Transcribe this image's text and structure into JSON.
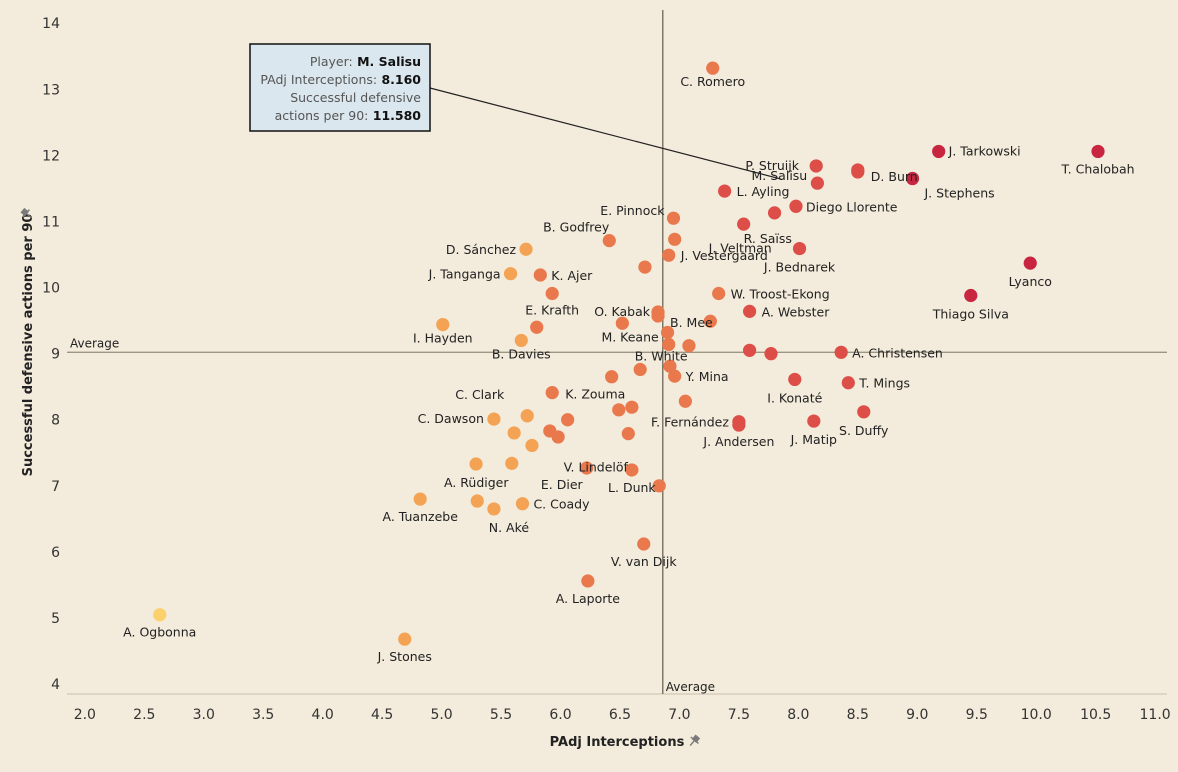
{
  "chart_data": {
    "type": "scatter",
    "xlabel": "PAdj Interceptions",
    "ylabel": "Successful defensive actions per 90",
    "xlim": [
      1.85,
      11.1
    ],
    "ylim": [
      3.85,
      14.2
    ],
    "x_ticks": [
      "2.0",
      "2.5",
      "3.0",
      "3.5",
      "4.0",
      "4.5",
      "5.0",
      "5.5",
      "6.0",
      "6.5",
      "7.0",
      "7.5",
      "8.0",
      "8.5",
      "9.0",
      "9.5",
      "10.0",
      "10.5",
      "11.0"
    ],
    "y_ticks": [
      "4",
      "5",
      "6",
      "7",
      "8",
      "9",
      "10",
      "11",
      "12",
      "13",
      "14"
    ],
    "grid": false,
    "reference_lines": {
      "x_average": 6.86,
      "y_average": 9.02,
      "x_label": "Average",
      "y_label": "Average"
    },
    "color_encoding": "color intensity increases with combined metrics (yellow → orange → red → crimson)",
    "tooltip": {
      "player_label": "Player:",
      "player": "M. Salisu",
      "x_label": "PAdj Interceptions:",
      "x_value": "8.160",
      "y_label_line1": "Successful defensive",
      "y_label_line2": "actions per 90:",
      "y_value": "11.580"
    },
    "points": [
      {
        "name": "C. Romero",
        "x": 7.28,
        "y": 13.32,
        "color": "#e9784c"
      },
      {
        "name": "J. Tarkowski",
        "x": 9.18,
        "y": 12.06,
        "color": "#c72540"
      },
      {
        "name": "T. Chalobah",
        "x": 10.52,
        "y": 12.06,
        "color": "#c72540"
      },
      {
        "name": "P. Struijk",
        "x": 8.15,
        "y": 11.84,
        "color": "#dc4e47"
      },
      {
        "name": "",
        "x": 8.5,
        "y": 11.78,
        "color": "#dc4e47"
      },
      {
        "name": "M. Salisu",
        "x": 8.16,
        "y": 11.58,
        "color": "#dc4e47"
      },
      {
        "name": "D. Burn",
        "x": 8.5,
        "y": 11.75,
        "color": "#dc4e47"
      },
      {
        "name": "J. Stephens",
        "x": 8.96,
        "y": 11.65,
        "color": "#c72540"
      },
      {
        "name": "L. Ayling",
        "x": 7.38,
        "y": 11.46,
        "color": "#dc4e47"
      },
      {
        "name": "Diego Llorente",
        "x": 7.98,
        "y": 11.23,
        "color": "#dc4e47"
      },
      {
        "name": "",
        "x": 7.8,
        "y": 11.13,
        "color": "#dc4e47"
      },
      {
        "name": "E. Pinnock",
        "x": 6.95,
        "y": 11.05,
        "color": "#e9784c"
      },
      {
        "name": "R. Saïss",
        "x": 7.54,
        "y": 10.96,
        "color": "#dc4e47"
      },
      {
        "name": "B. Godfrey",
        "x": 6.41,
        "y": 10.71,
        "color": "#e9784c"
      },
      {
        "name": "J. Veltman",
        "x": 6.96,
        "y": 10.73,
        "color": "#e9784c"
      },
      {
        "name": "J. Bednarek",
        "x": 8.01,
        "y": 10.59,
        "color": "#dc4e47"
      },
      {
        "name": "D. Sánchez",
        "x": 5.71,
        "y": 10.58,
        "color": "#f4a354"
      },
      {
        "name": "J. Vestergaard",
        "x": 6.91,
        "y": 10.49,
        "color": "#e9784c"
      },
      {
        "name": "Lyanco",
        "x": 9.95,
        "y": 10.37,
        "color": "#c72540"
      },
      {
        "name": "",
        "x": 6.71,
        "y": 10.31,
        "color": "#e9784c"
      },
      {
        "name": "J. Tanganga",
        "x": 5.58,
        "y": 10.21,
        "color": "#f4a354"
      },
      {
        "name": "K. Ajer",
        "x": 5.83,
        "y": 10.19,
        "color": "#e9784c"
      },
      {
        "name": "E. Krafth",
        "x": 5.93,
        "y": 9.91,
        "color": "#e9784c"
      },
      {
        "name": "W. Troost-Ekong",
        "x": 7.33,
        "y": 9.91,
        "color": "#e9784c"
      },
      {
        "name": "Thiago Silva",
        "x": 9.45,
        "y": 9.88,
        "color": "#c72540"
      },
      {
        "name": "O. Kabak",
        "x": 6.82,
        "y": 9.63,
        "color": "#e9784c"
      },
      {
        "name": "B. Mee",
        "x": 6.82,
        "y": 9.57,
        "color": "#e9784c"
      },
      {
        "name": "A. Webster",
        "x": 7.59,
        "y": 9.64,
        "color": "#dc4e47"
      },
      {
        "name": "",
        "x": 7.26,
        "y": 9.49,
        "color": "#e9784c"
      },
      {
        "name": "I. Hayden",
        "x": 5.01,
        "y": 9.44,
        "color": "#f4a354"
      },
      {
        "name": "",
        "x": 6.52,
        "y": 9.46,
        "color": "#e9784c"
      },
      {
        "name": "",
        "x": 5.8,
        "y": 9.4,
        "color": "#e9784c"
      },
      {
        "name": "",
        "x": 6.9,
        "y": 9.32,
        "color": "#e9784c"
      },
      {
        "name": "M. Keane",
        "x": 6.91,
        "y": 9.14,
        "color": "#e9784c"
      },
      {
        "name": "B. Davies",
        "x": 5.67,
        "y": 9.2,
        "color": "#f4a354"
      },
      {
        "name": "",
        "x": 7.08,
        "y": 9.12,
        "color": "#e9784c"
      },
      {
        "name": "B. White",
        "x": 7.59,
        "y": 9.05,
        "color": "#dc4e47"
      },
      {
        "name": "",
        "x": 7.77,
        "y": 9.0,
        "color": "#dc4e47"
      },
      {
        "name": "A. Christensen",
        "x": 8.36,
        "y": 9.02,
        "color": "#dc4e47"
      },
      {
        "name": "",
        "x": 6.92,
        "y": 8.81,
        "color": "#e9784c"
      },
      {
        "name": "",
        "x": 6.67,
        "y": 8.76,
        "color": "#e9784c"
      },
      {
        "name": "Y. Mina",
        "x": 6.96,
        "y": 8.66,
        "color": "#e9784c"
      },
      {
        "name": "",
        "x": 6.43,
        "y": 8.65,
        "color": "#e9784c"
      },
      {
        "name": "I. Konaté",
        "x": 7.97,
        "y": 8.61,
        "color": "#dc4e47"
      },
      {
        "name": "T. Mings",
        "x": 8.42,
        "y": 8.56,
        "color": "#dc4e47"
      },
      {
        "name": "K. Zouma",
        "x": 5.93,
        "y": 8.41,
        "color": "#e9784c"
      },
      {
        "name": "",
        "x": 7.05,
        "y": 8.28,
        "color": "#e9784c"
      },
      {
        "name": "C. Clark",
        "x": 5.72,
        "y": 8.06,
        "color": "#f4a354"
      },
      {
        "name": "",
        "x": 6.49,
        "y": 8.15,
        "color": "#e9784c"
      },
      {
        "name": "",
        "x": 6.6,
        "y": 8.19,
        "color": "#e9784c"
      },
      {
        "name": "S. Duffy",
        "x": 8.55,
        "y": 8.12,
        "color": "#dc4e47"
      },
      {
        "name": "C. Dawson",
        "x": 5.44,
        "y": 8.01,
        "color": "#f4a354"
      },
      {
        "name": "",
        "x": 6.06,
        "y": 8.0,
        "color": "#e9784c"
      },
      {
        "name": "F. Fernández",
        "x": 7.5,
        "y": 7.97,
        "color": "#dc4e47"
      },
      {
        "name": "J. Andersen",
        "x": 7.5,
        "y": 7.92,
        "color": "#dc4e47"
      },
      {
        "name": "J. Matip",
        "x": 8.13,
        "y": 7.98,
        "color": "#dc4e47"
      },
      {
        "name": "",
        "x": 5.91,
        "y": 7.83,
        "color": "#e9784c"
      },
      {
        "name": "",
        "x": 5.61,
        "y": 7.8,
        "color": "#f4a354"
      },
      {
        "name": "",
        "x": 6.57,
        "y": 7.79,
        "color": "#e9784c"
      },
      {
        "name": "",
        "x": 5.98,
        "y": 7.74,
        "color": "#e9784c"
      },
      {
        "name": "V. Lindelöf",
        "x": 5.76,
        "y": 7.61,
        "color": "#f4a354"
      },
      {
        "name": "",
        "x": 5.29,
        "y": 7.33,
        "color": "#f4a354"
      },
      {
        "name": "",
        "x": 5.59,
        "y": 7.34,
        "color": "#f4a354"
      },
      {
        "name": "E. Dier",
        "x": 6.22,
        "y": 7.27,
        "color": "#e9784c"
      },
      {
        "name": "L. Dunk",
        "x": 6.6,
        "y": 7.24,
        "color": "#e9784c"
      },
      {
        "name": "A. Rüdiger",
        "x": 5.3,
        "y": 6.77,
        "color": "#f4a354"
      },
      {
        "name": "",
        "x": 6.83,
        "y": 7.0,
        "color": "#e9784c"
      },
      {
        "name": "A. Tuanzebe",
        "x": 4.82,
        "y": 6.8,
        "color": "#f4a354"
      },
      {
        "name": "N. Aké",
        "x": 5.44,
        "y": 6.65,
        "color": "#f4a354"
      },
      {
        "name": "C. Coady",
        "x": 5.68,
        "y": 6.73,
        "color": "#f4a354"
      },
      {
        "name": "V. van Dijk",
        "x": 6.7,
        "y": 6.12,
        "color": "#e9784c"
      },
      {
        "name": "A. Laporte",
        "x": 6.23,
        "y": 5.56,
        "color": "#e9784c"
      },
      {
        "name": "A. Ogbonna",
        "x": 2.63,
        "y": 5.05,
        "color": "#fcd06b"
      },
      {
        "name": "J. Stones",
        "x": 4.69,
        "y": 4.68,
        "color": "#f4a354"
      }
    ]
  }
}
